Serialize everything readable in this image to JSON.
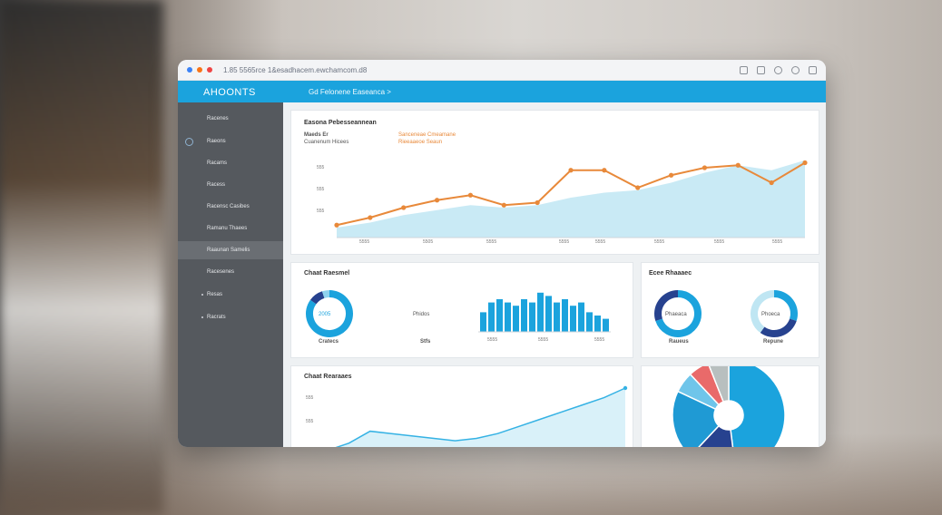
{
  "window": {
    "url": "1.85 5565rce  1&esadhacem.ewchamcom.d8",
    "brand": "AHOONTS",
    "header_title": "Gd Felonene Easeanca >"
  },
  "sidebar": {
    "items": [
      {
        "label": "Racenes"
      },
      {
        "label": "Raeons"
      },
      {
        "label": "Racams"
      },
      {
        "label": "Racess"
      },
      {
        "label": "Racensc Casibes"
      },
      {
        "label": "Ramanu Thaees"
      },
      {
        "label": "Raaunan Samelis"
      },
      {
        "label": "Racesenes"
      },
      {
        "label": "Resas"
      },
      {
        "label": "Racrats"
      }
    ]
  },
  "main_chart": {
    "title": "Easona Pebesseannean",
    "subtitle1": "Maeds Er",
    "subtitle2": "Cuanenum Hicees",
    "legend1": "Sanceneae Cmeamane",
    "legend2": "Rieeaaeoe Seaun",
    "y_ticks": [
      "555",
      "555",
      "555"
    ],
    "x_ticks": [
      "5555",
      "5505",
      "5555",
      "5555",
      "5555",
      "5555",
      "5555",
      "5555"
    ]
  },
  "donut_card_left": {
    "title": "Chaat Raesmel",
    "donut1_label": "2005",
    "donut1_caption": "Cratecs",
    "donut2_label": "Phidos",
    "donut2_caption": "Stfs",
    "bar_ticks": [
      "5555",
      "5555",
      "5555"
    ]
  },
  "donut_card_right": {
    "title": "Ecee Rhaaaec",
    "donut1_label": "Phaeaca",
    "donut1_caption": "Raueus",
    "donut2_label": "Phoeca",
    "donut2_caption": "Repune"
  },
  "bottom_card": {
    "title": "Chaat Rearaaes",
    "y_tick": "555"
  },
  "colors": {
    "accent": "#1ba3dd",
    "orange": "#e8893a",
    "dark_blue": "#27428f",
    "sidebar": "#55595e",
    "area_fill": "#bfe6f3"
  },
  "chart_data": [
    {
      "type": "line",
      "series": [
        {
          "values": [
            5,
            8,
            12,
            15,
            17,
            13,
            14,
            27,
            27,
            20,
            25,
            28,
            29,
            22,
            30
          ]
        }
      ],
      "area_values": [
        4,
        6,
        9,
        11,
        13,
        12,
        13,
        16,
        18,
        19,
        22,
        26,
        29,
        27,
        31
      ]
    },
    {
      "type": "bar",
      "values": [
        6,
        9,
        10,
        9,
        8,
        10,
        9,
        12,
        11,
        9,
        10,
        8,
        9,
        6,
        5,
        4
      ]
    },
    {
      "type": "pie",
      "slices": [
        {
          "value": 48,
          "color": "#1ba3dd"
        },
        {
          "value": 14,
          "color": "#27428f"
        },
        {
          "value": 20,
          "color": "#1f9ad4"
        },
        {
          "value": 6,
          "color": "#6fc5ea"
        },
        {
          "value": 6,
          "color": "#e96a6a"
        },
        {
          "value": 6,
          "color": "#b8bfbf"
        }
      ]
    },
    {
      "type": "line",
      "series": [
        {
          "values": [
            2,
            5,
            10,
            9,
            8,
            7,
            6,
            7,
            9,
            12,
            15,
            18,
            21,
            24,
            28
          ]
        }
      ]
    }
  ]
}
